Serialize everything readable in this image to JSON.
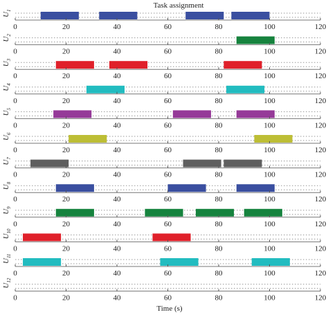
{
  "chart_data": {
    "type": "gantt",
    "title": "Task assignment",
    "xlabel": "Time (s)",
    "xlim": [
      0,
      120
    ],
    "xticks": [
      0,
      20,
      40,
      60,
      80,
      100,
      120
    ],
    "grid": false,
    "rows": [
      {
        "label": "U",
        "sub": "1",
        "tasks": [
          {
            "start": 10,
            "end": 25,
            "color": "#3a4fa0"
          },
          {
            "start": 33,
            "end": 48,
            "color": "#3a4fa0"
          },
          {
            "start": 67,
            "end": 82,
            "color": "#3a4fa0"
          },
          {
            "start": 85,
            "end": 100,
            "color": "#3a4fa0"
          }
        ]
      },
      {
        "label": "U",
        "sub": "2",
        "tasks": [
          {
            "start": 87,
            "end": 102,
            "color": "#16833e"
          }
        ]
      },
      {
        "label": "U",
        "sub": "3",
        "tasks": [
          {
            "start": 16,
            "end": 31,
            "color": "#e0202a"
          },
          {
            "start": 37,
            "end": 52,
            "color": "#e0202a"
          },
          {
            "start": 82,
            "end": 97,
            "color": "#e0202a"
          }
        ]
      },
      {
        "label": "U",
        "sub": "4",
        "tasks": [
          {
            "start": 28,
            "end": 43,
            "color": "#22bcc0"
          },
          {
            "start": 83,
            "end": 98,
            "color": "#22bcc0"
          }
        ]
      },
      {
        "label": "U",
        "sub": "5",
        "tasks": [
          {
            "start": 15,
            "end": 30,
            "color": "#953a98"
          },
          {
            "start": 62,
            "end": 77,
            "color": "#953a98"
          },
          {
            "start": 87,
            "end": 102,
            "color": "#953a98"
          }
        ]
      },
      {
        "label": "U",
        "sub": "6",
        "tasks": [
          {
            "start": 21,
            "end": 36,
            "color": "#bdbe35"
          },
          {
            "start": 94,
            "end": 109,
            "color": "#bdbe35"
          }
        ]
      },
      {
        "label": "U",
        "sub": "7",
        "tasks": [
          {
            "start": 6,
            "end": 21,
            "color": "#5f5f5f"
          },
          {
            "start": 66,
            "end": 81,
            "color": "#5f5f5f"
          },
          {
            "start": 82,
            "end": 97,
            "color": "#5f5f5f"
          }
        ]
      },
      {
        "label": "U",
        "sub": "8",
        "tasks": [
          {
            "start": 16,
            "end": 31,
            "color": "#3a4fa0"
          },
          {
            "start": 60,
            "end": 75,
            "color": "#3a4fa0"
          },
          {
            "start": 87,
            "end": 102,
            "color": "#3a4fa0"
          }
        ]
      },
      {
        "label": "U",
        "sub": "9",
        "tasks": [
          {
            "start": 16,
            "end": 31,
            "color": "#16833e"
          },
          {
            "start": 51,
            "end": 66,
            "color": "#16833e"
          },
          {
            "start": 71,
            "end": 86,
            "color": "#16833e"
          },
          {
            "start": 90,
            "end": 105,
            "color": "#16833e"
          }
        ]
      },
      {
        "label": "U",
        "sub": "10",
        "tasks": [
          {
            "start": 3,
            "end": 18,
            "color": "#e0202a"
          },
          {
            "start": 54,
            "end": 69,
            "color": "#e0202a"
          }
        ]
      },
      {
        "label": "U",
        "sub": "11",
        "tasks": [
          {
            "start": 3,
            "end": 18,
            "color": "#22bcc0"
          },
          {
            "start": 57,
            "end": 72,
            "color": "#22bcc0"
          },
          {
            "start": 93,
            "end": 108,
            "color": "#22bcc0"
          }
        ]
      },
      {
        "label": "U",
        "sub": "12",
        "tasks": []
      }
    ]
  }
}
